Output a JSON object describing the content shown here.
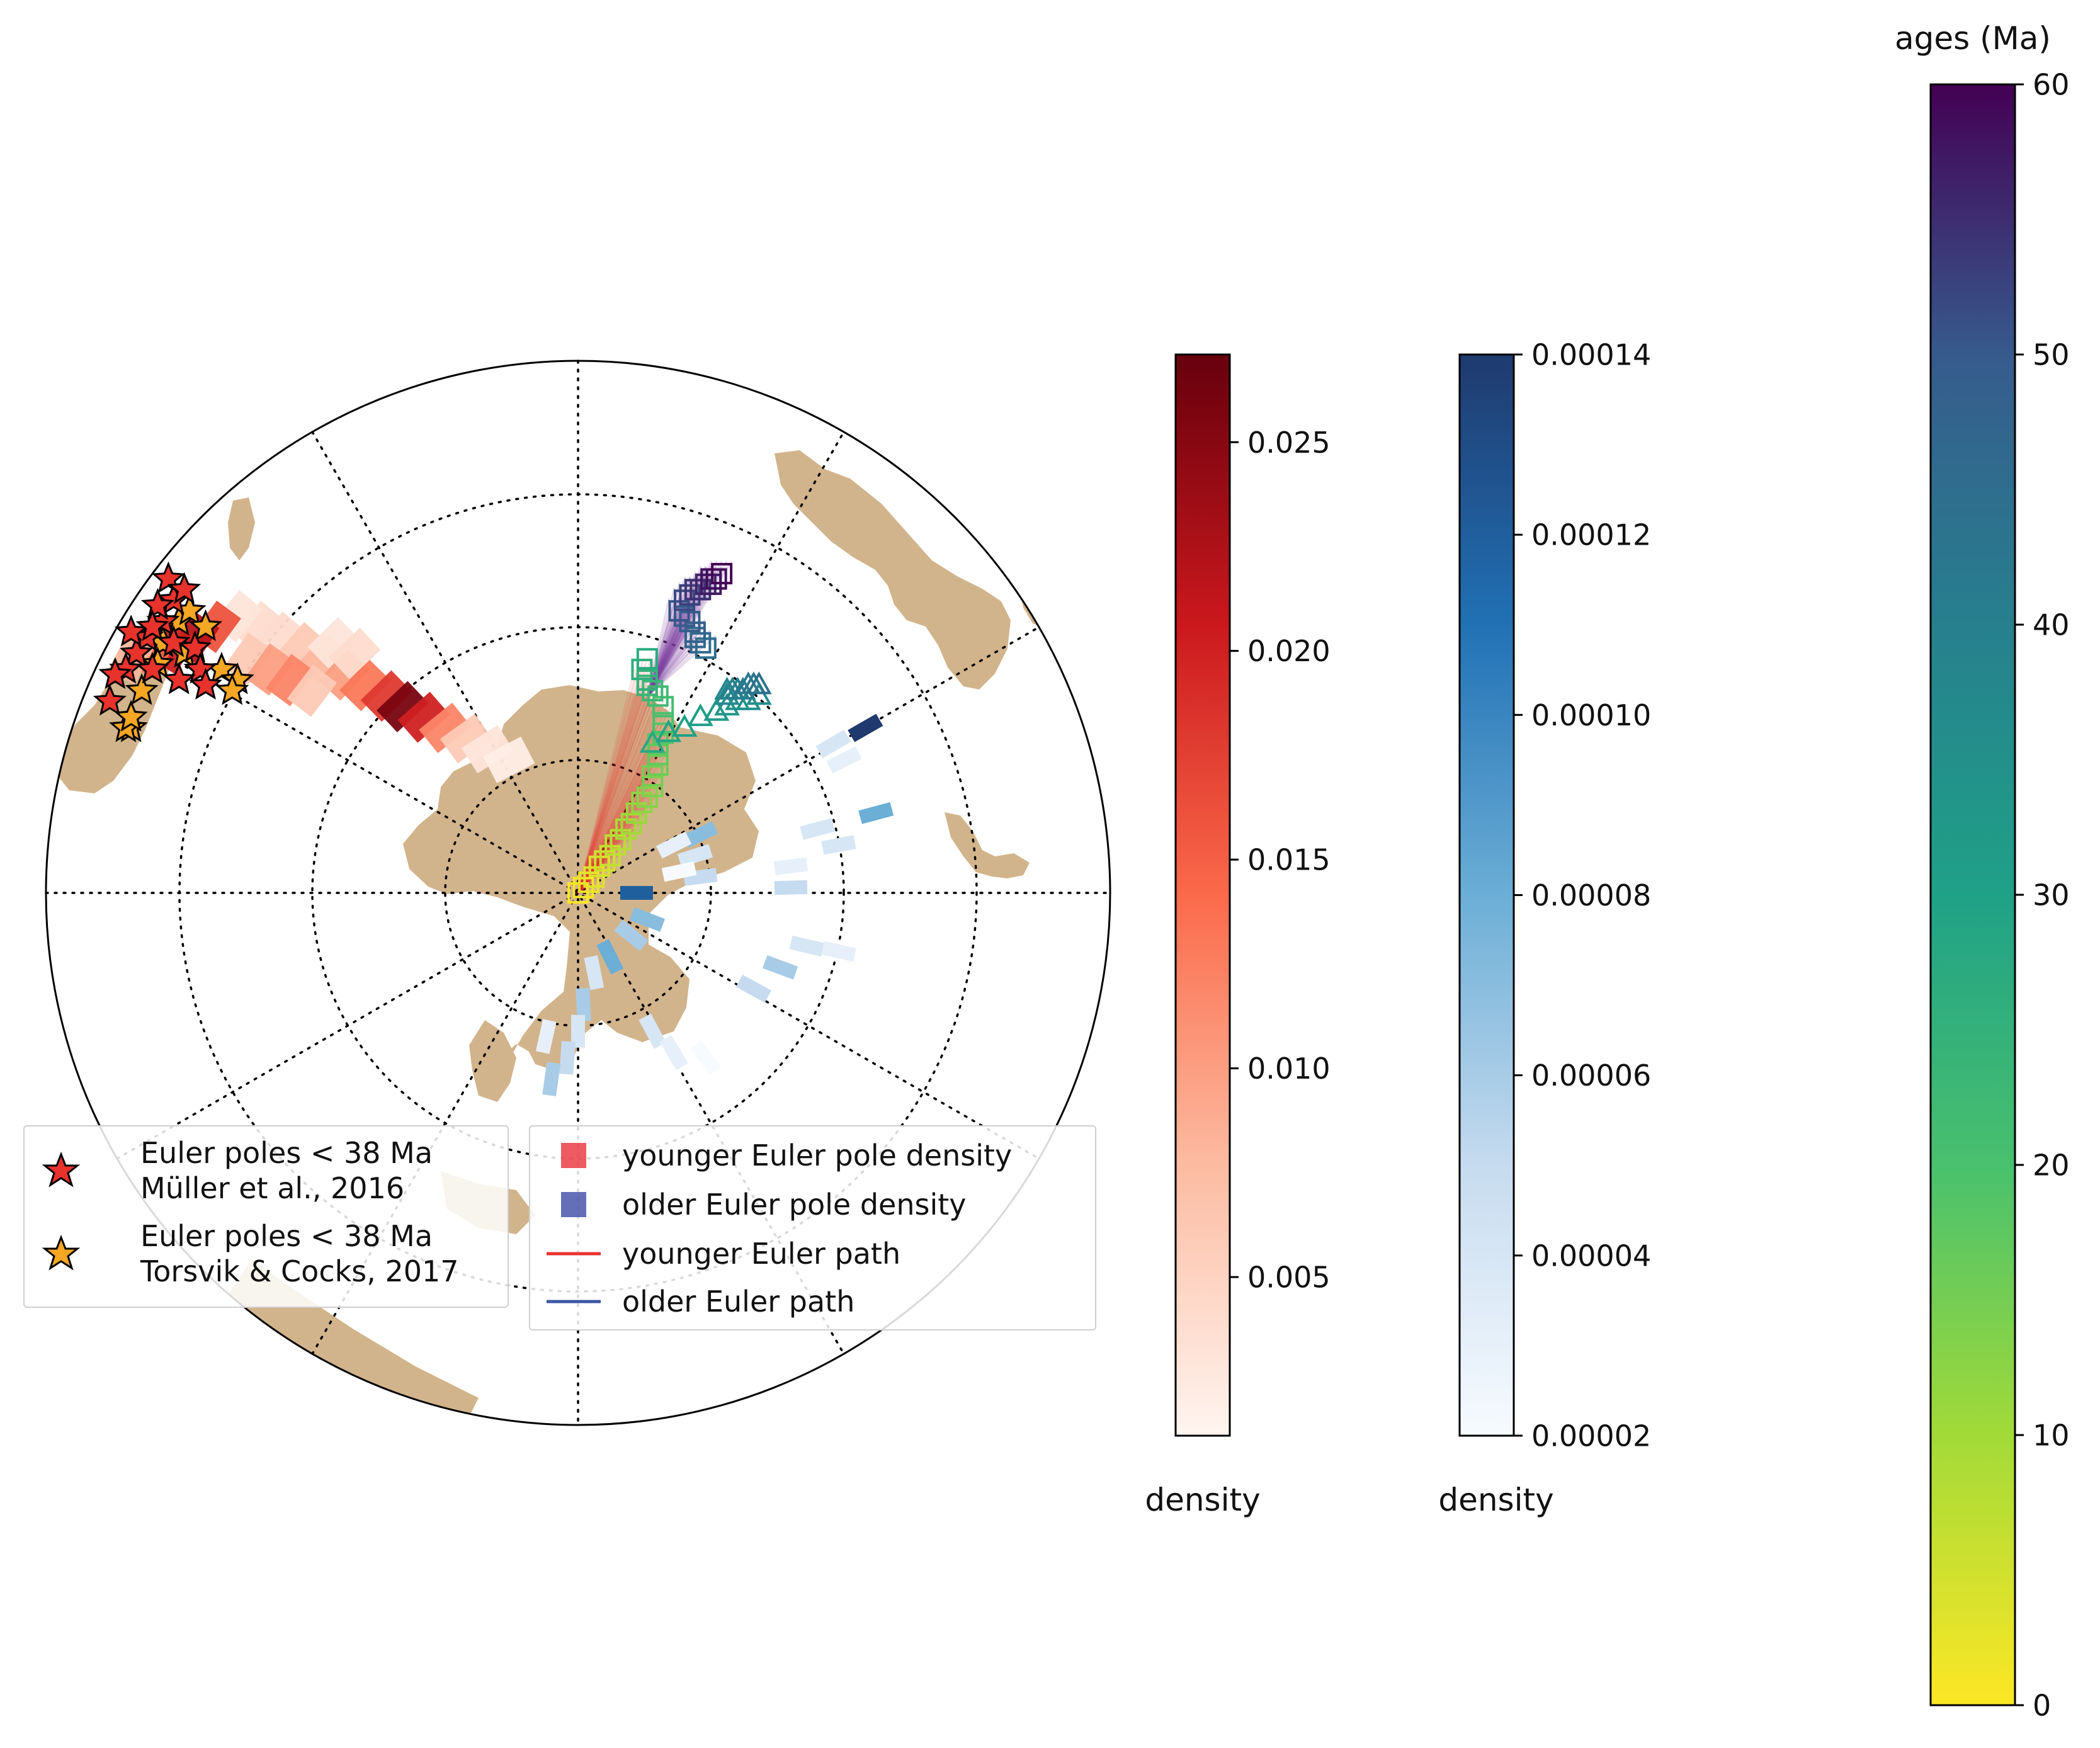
{
  "chart_data": [
    {
      "type": "scatter",
      "map_projection": "orthographic, south polar",
      "grid": true,
      "colors": {
        "land": "#d2b48c",
        "younger": "#e8322c",
        "older": "#3a56a6"
      },
      "legend_left": {
        "entries": [
          {
            "marker": "star",
            "color": "#e8322c",
            "line1": "Euler poles < 38 Ma",
            "line2": "Müller et al., 2016"
          },
          {
            "marker": "star",
            "color": "#f5a623",
            "line1": "Euler poles < 38 Ma",
            "line2": "Torsvik & Cocks, 2017"
          }
        ]
      },
      "legend_right": {
        "entries": [
          {
            "marker": "square",
            "color": "#e8323c",
            "label": "younger Euler pole density"
          },
          {
            "marker": "square",
            "color": "#3f4ba6",
            "label": "older Euler pole density"
          },
          {
            "marker": "line",
            "color": "#e8322c",
            "label": "younger Euler path"
          },
          {
            "marker": "line",
            "color": "#3a56a6",
            "label": "older Euler path"
          }
        ]
      },
      "euler_poles": {
        "muller_2016": [
          [
            -0.78,
            0.51
          ],
          [
            -0.76,
            0.55
          ],
          [
            -0.77,
            0.59
          ],
          [
            -0.74,
            0.57
          ],
          [
            -0.79,
            0.54
          ],
          [
            -0.81,
            0.48
          ],
          [
            -0.83,
            0.45
          ],
          [
            -0.85,
            0.42
          ],
          [
            -0.8,
            0.42
          ],
          [
            -0.76,
            0.47
          ],
          [
            -0.72,
            0.46
          ],
          [
            -0.71,
            0.42
          ],
          [
            -0.7,
            0.39
          ],
          [
            -0.75,
            0.4
          ],
          [
            -0.87,
            0.41
          ],
          [
            -0.84,
            0.49
          ],
          [
            -0.8,
            0.5
          ],
          [
            -0.88,
            0.36
          ]
        ],
        "torsvik_cocks_2017": [
          [
            -0.75,
            0.51
          ],
          [
            -0.73,
            0.53
          ],
          [
            -0.78,
            0.47
          ],
          [
            -0.7,
            0.5
          ],
          [
            -0.79,
            0.43
          ],
          [
            -0.74,
            0.45
          ],
          [
            -0.67,
            0.42
          ],
          [
            -0.64,
            0.4
          ],
          [
            -0.65,
            0.38
          ],
          [
            -0.82,
            0.38
          ],
          [
            -0.84,
            0.31
          ],
          [
            -0.85,
            0.31
          ],
          [
            -0.84,
            0.33
          ]
        ]
      },
      "younger_density": {
        "colormap": "Reds",
        "cells": [
          [
            -0.6,
            0.5,
            0.004
          ],
          [
            -0.56,
            0.48,
            0.004
          ],
          [
            -0.52,
            0.46,
            0.006
          ],
          [
            -0.48,
            0.44,
            0.008
          ],
          [
            -0.44,
            0.41,
            0.01
          ],
          [
            -0.4,
            0.39,
            0.013
          ],
          [
            -0.36,
            0.37,
            0.018
          ],
          [
            -0.33,
            0.35,
            0.026
          ],
          [
            -0.29,
            0.33,
            0.02
          ],
          [
            -0.25,
            0.31,
            0.012
          ],
          [
            -0.21,
            0.29,
            0.006
          ],
          [
            -0.17,
            0.27,
            0.003
          ],
          [
            -0.13,
            0.25,
            0.002
          ],
          [
            -0.64,
            0.52,
            0.003
          ],
          [
            -0.68,
            0.5,
            0.016
          ],
          [
            -0.72,
            0.48,
            0.022
          ],
          [
            -0.76,
            0.46,
            0.02
          ],
          [
            -0.8,
            0.45,
            0.014
          ],
          [
            -0.84,
            0.44,
            0.008
          ],
          [
            -0.62,
            0.44,
            0.006
          ],
          [
            -0.58,
            0.42,
            0.01
          ],
          [
            -0.54,
            0.4,
            0.012
          ],
          [
            -0.5,
            0.38,
            0.006
          ],
          [
            -0.46,
            0.47,
            0.003
          ],
          [
            -0.42,
            0.45,
            0.004
          ]
        ]
      },
      "older_density": {
        "colormap": "Blues",
        "cells": [
          [
            0.54,
            0.31,
            0.00014
          ],
          [
            0.48,
            0.28,
            4e-05
          ],
          [
            0.5,
            0.25,
            3e-05
          ],
          [
            0.56,
            0.15,
            8e-05
          ],
          [
            0.45,
            0.12,
            4e-05
          ],
          [
            0.49,
            0.09,
            4e-05
          ],
          [
            0.4,
            0.05,
            3e-05
          ],
          [
            0.4,
            0.01,
            5e-05
          ],
          [
            0.23,
            0.11,
            7e-05
          ],
          [
            0.22,
            0.07,
            4e-05
          ],
          [
            0.23,
            0.03,
            5e-05
          ],
          [
            0.18,
            0.09,
            3e-05
          ],
          [
            0.19,
            0.04,
            2e-05
          ],
          [
            0.43,
            -0.1,
            4e-05
          ],
          [
            0.49,
            -0.11,
            3e-05
          ],
          [
            0.38,
            -0.14,
            6e-05
          ],
          [
            0.33,
            -0.18,
            5e-05
          ],
          [
            0.13,
            -0.05,
            7e-05
          ],
          [
            0.1,
            -0.08,
            6e-05
          ],
          [
            0.06,
            -0.12,
            8e-05
          ],
          [
            0.03,
            -0.15,
            4e-05
          ],
          [
            0.01,
            -0.21,
            6e-05
          ],
          [
            0.0,
            -0.26,
            4e-05
          ],
          [
            -0.02,
            -0.31,
            5e-05
          ],
          [
            -0.06,
            -0.27,
            3e-05
          ],
          [
            0.14,
            -0.26,
            4e-05
          ],
          [
            0.18,
            -0.3,
            3e-05
          ],
          [
            0.24,
            -0.31,
            2e-05
          ],
          [
            -0.05,
            -0.35,
            6e-05
          ],
          [
            0.11,
            0.0,
            0.00012
          ]
        ]
      },
      "younger_pole_path": {
        "markers": [
          [
            0.0,
            0.0,
            0
          ],
          [
            0.01,
            0.01,
            1
          ],
          [
            0.02,
            0.02,
            2
          ],
          [
            0.03,
            0.03,
            3
          ],
          [
            0.04,
            0.05,
            4
          ],
          [
            0.05,
            0.06,
            5
          ],
          [
            0.06,
            0.07,
            6
          ],
          [
            0.07,
            0.09,
            7
          ],
          [
            0.08,
            0.1,
            8
          ],
          [
            0.09,
            0.12,
            9
          ],
          [
            0.1,
            0.13,
            10
          ],
          [
            0.11,
            0.15,
            11
          ],
          [
            0.12,
            0.17,
            12
          ],
          [
            0.13,
            0.18,
            13
          ],
          [
            0.14,
            0.2,
            14
          ],
          [
            0.14,
            0.22,
            15
          ],
          [
            0.15,
            0.24,
            16
          ],
          [
            0.15,
            0.26,
            17
          ],
          [
            0.15,
            0.28,
            18
          ],
          [
            0.16,
            0.3,
            19
          ],
          [
            0.16,
            0.32,
            20
          ],
          [
            0.16,
            0.35,
            21
          ],
          [
            0.15,
            0.37,
            22
          ],
          [
            0.14,
            0.38,
            23
          ],
          [
            0.13,
            0.39,
            24
          ],
          [
            0.13,
            0.4,
            25
          ],
          [
            0.12,
            0.42,
            26
          ],
          [
            0.13,
            0.44,
            27
          ]
        ]
      },
      "older_pole_path": {
        "markers": [
          [
            0.14,
            0.28,
            28
          ],
          [
            0.17,
            0.3,
            29
          ],
          [
            0.2,
            0.31,
            30
          ],
          [
            0.23,
            0.33,
            31
          ],
          [
            0.26,
            0.34,
            32
          ],
          [
            0.28,
            0.35,
            33
          ],
          [
            0.3,
            0.36,
            34
          ],
          [
            0.32,
            0.36,
            35
          ],
          [
            0.34,
            0.37,
            36
          ],
          [
            0.28,
            0.37,
            37
          ],
          [
            0.28,
            0.38,
            38
          ],
          [
            0.29,
            0.38,
            39
          ],
          [
            0.3,
            0.38,
            40
          ],
          [
            0.31,
            0.38,
            41
          ],
          [
            0.32,
            0.39,
            42
          ],
          [
            0.33,
            0.39,
            43
          ],
          [
            0.34,
            0.39,
            44
          ],
          [
            0.24,
            0.46,
            45
          ],
          [
            0.23,
            0.47,
            46
          ],
          [
            0.22,
            0.48,
            47
          ],
          [
            0.22,
            0.49,
            48
          ],
          [
            0.21,
            0.51,
            49
          ],
          [
            0.2,
            0.52,
            50
          ],
          [
            0.19,
            0.53,
            51
          ],
          [
            0.2,
            0.55,
            52
          ],
          [
            0.21,
            0.56,
            53
          ],
          [
            0.22,
            0.57,
            54
          ],
          [
            0.23,
            0.57,
            55
          ],
          [
            0.24,
            0.58,
            56
          ],
          [
            0.25,
            0.58,
            57
          ],
          [
            0.25,
            0.59,
            58
          ],
          [
            0.26,
            0.59,
            59
          ],
          [
            0.27,
            0.6,
            60
          ]
        ]
      }
    },
    {
      "type": "heatmap",
      "role": "colorbar",
      "colormap": "Reds",
      "label": "density",
      "range": [
        0.0012,
        0.0271
      ],
      "ticks": [
        "0.005",
        "0.010",
        "0.015",
        "0.020",
        "0.025"
      ],
      "tick_values": [
        0.005,
        0.01,
        0.015,
        0.02,
        0.025
      ]
    },
    {
      "type": "heatmap",
      "role": "colorbar",
      "colormap": "Blues",
      "label": "density",
      "range": [
        2e-05,
        0.00014
      ],
      "ticks": [
        "0.00002",
        "0.00004",
        "0.00006",
        "0.00008",
        "0.00010",
        "0.00012",
        "0.00014"
      ],
      "tick_values": [
        2e-05,
        4e-05,
        6e-05,
        8e-05,
        0.0001,
        0.00012,
        0.00014
      ]
    },
    {
      "type": "heatmap",
      "role": "colorbar",
      "colormap": "viridis_r",
      "title": "ages (Ma)",
      "range": [
        0,
        60
      ],
      "ticks": [
        "0",
        "10",
        "20",
        "30",
        "40",
        "50",
        "60"
      ],
      "tick_values": [
        0,
        10,
        20,
        30,
        40,
        50,
        60
      ]
    }
  ]
}
